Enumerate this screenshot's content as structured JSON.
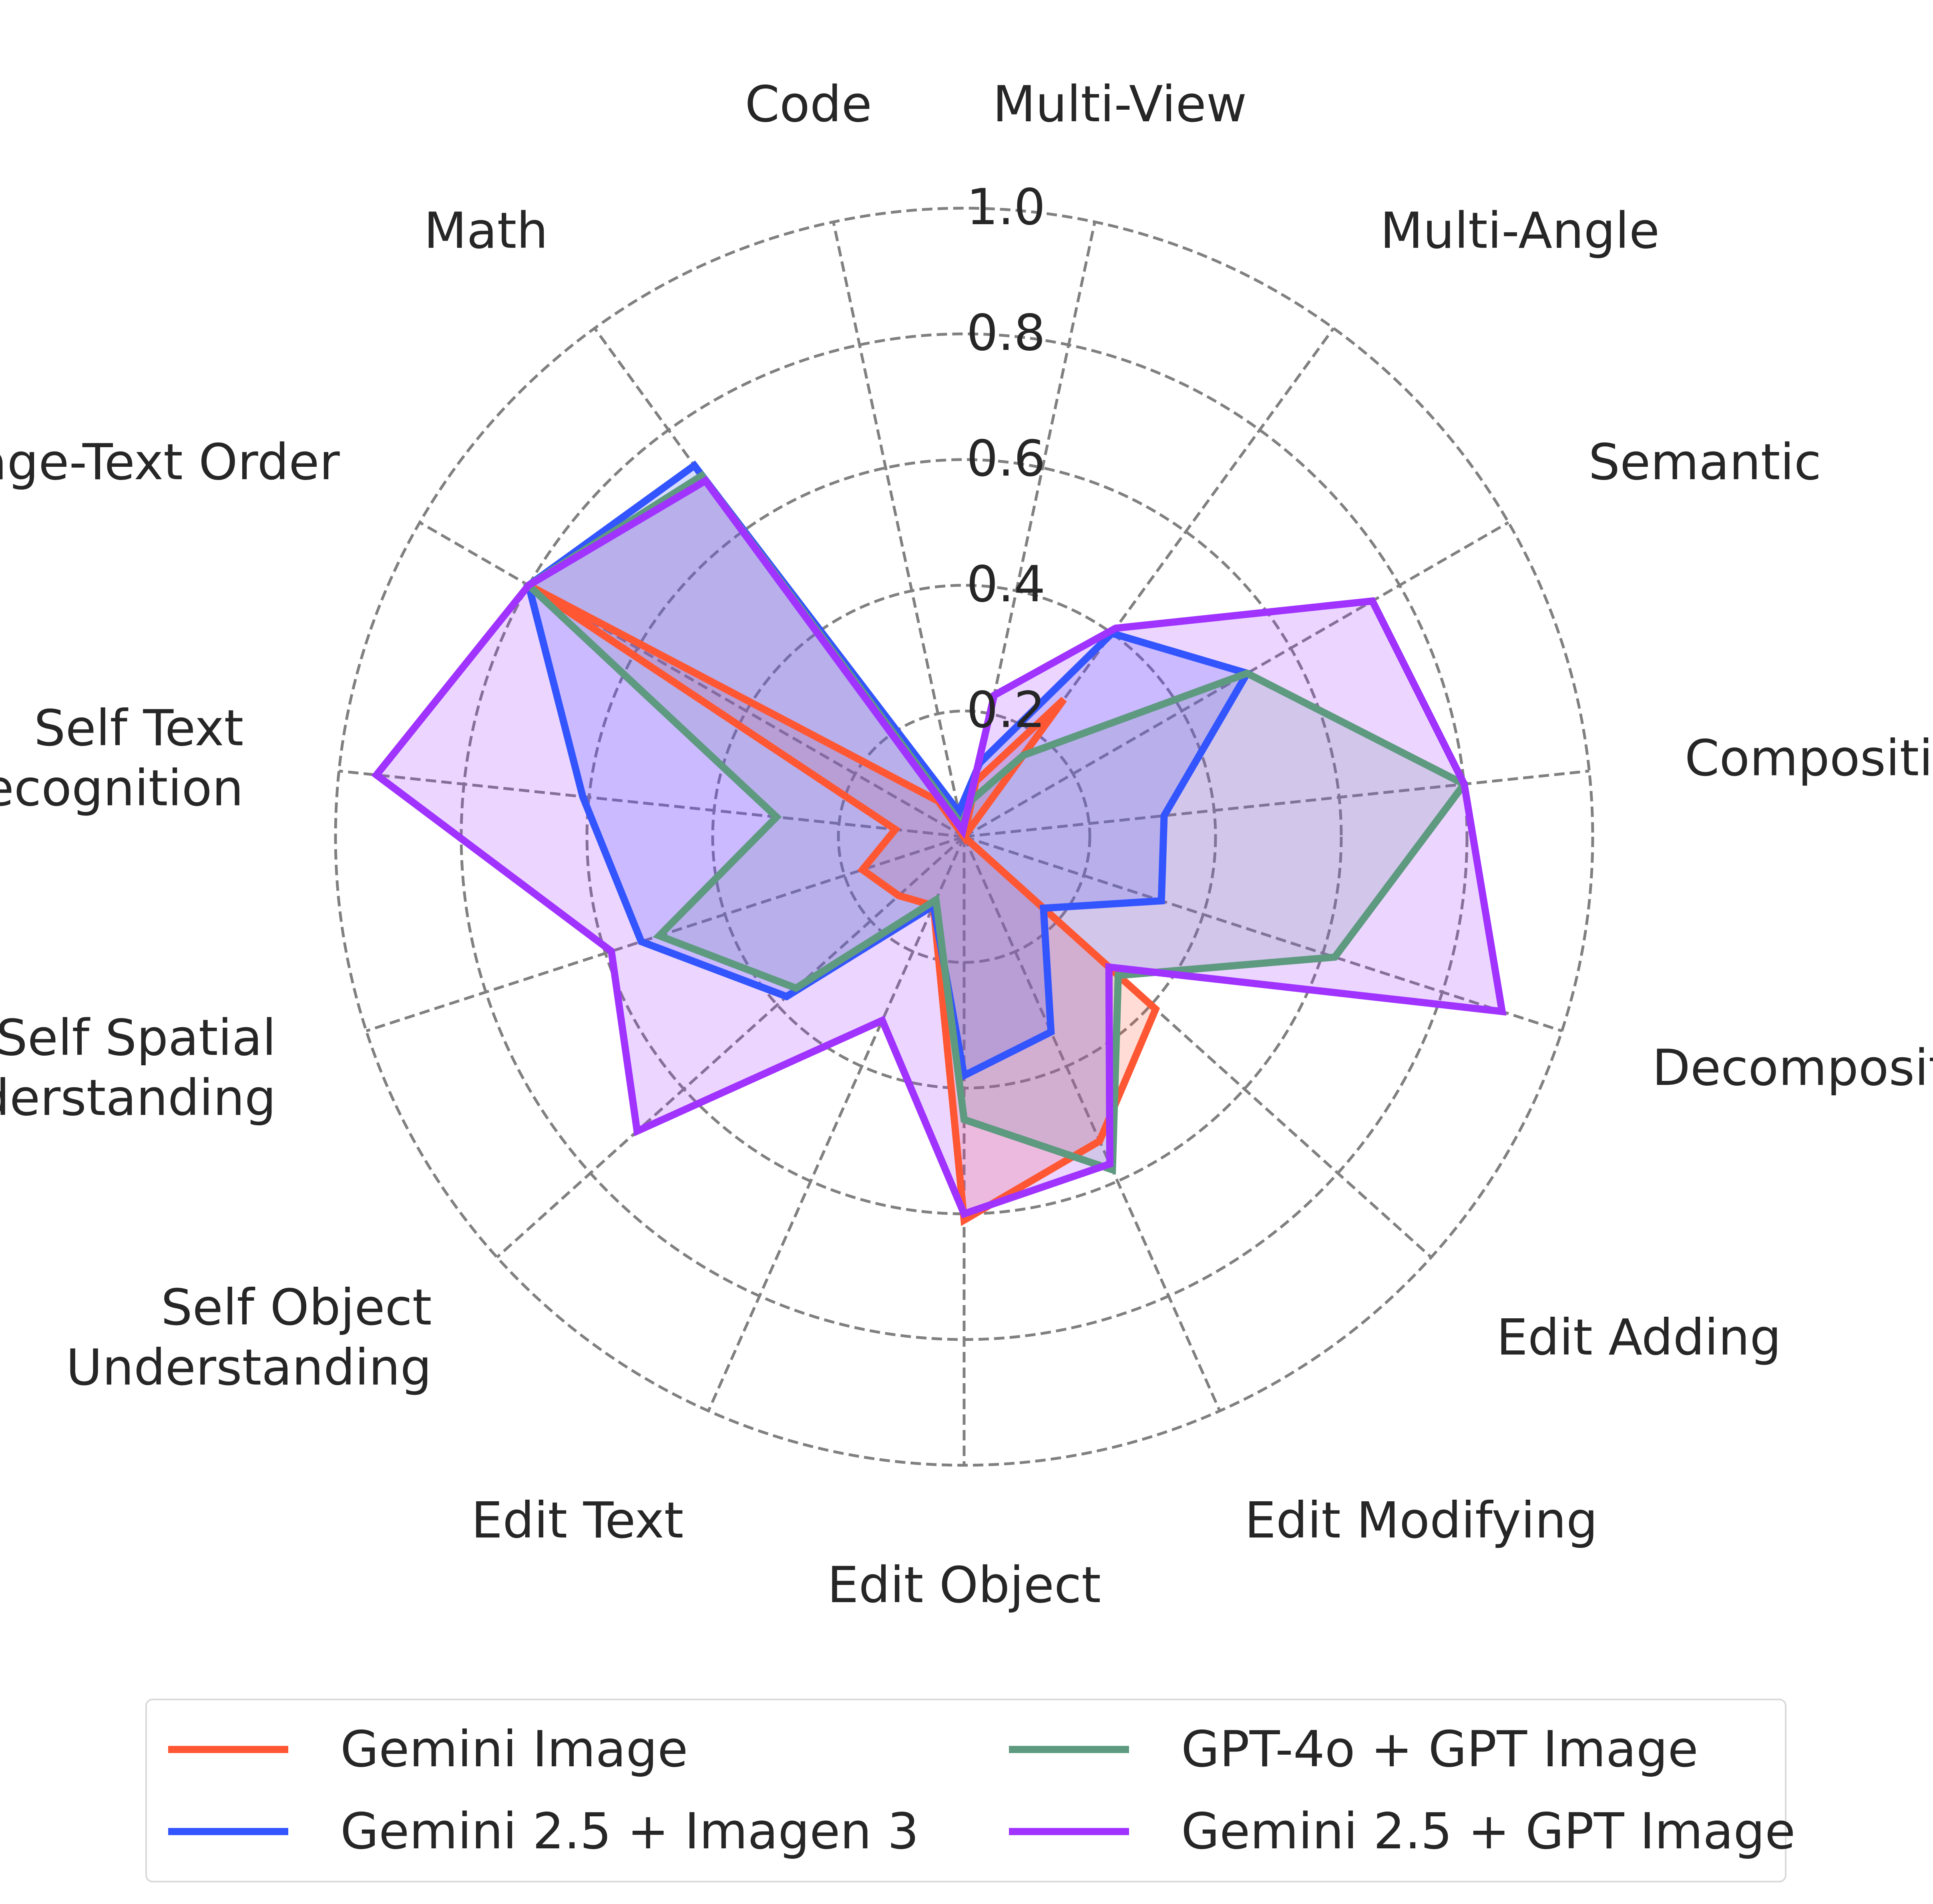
{
  "chart_data": {
    "type": "radar",
    "categories": [
      "Multi-View",
      "Multi-Angle",
      "Semantic",
      "Composition",
      "Decomposition",
      "Edit Adding",
      "Edit Modifying",
      "Edit Object",
      "Edit Text",
      "Self Object\nUnderstanding",
      "Self Spatial\nUnderstanding",
      "Self Text\nRecognition",
      "Image-Text Order",
      "Math",
      "Code"
    ],
    "rlim": [
      0,
      1.0
    ],
    "rticks": [
      "0.2",
      "0.4",
      "0.6",
      "0.8",
      "1.0"
    ],
    "grid": true,
    "legend_position": "bottom",
    "series": [
      {
        "name": "Gemini Image",
        "color": "#ff5733",
        "values": [
          0.09,
          0.27,
          0.0,
          0.0,
          0.0,
          0.41,
          0.53,
          0.61,
          0.12,
          0.14,
          0.17,
          0.11,
          0.8,
          0.07,
          0.0
        ]
      },
      {
        "name": "Gemini 2.5 + Imagen 3",
        "color": "#3355ff",
        "values": [
          0.12,
          0.4,
          0.52,
          0.32,
          0.33,
          0.17,
          0.34,
          0.38,
          0.12,
          0.38,
          0.54,
          0.61,
          0.8,
          0.73,
          0.04
        ]
      },
      {
        "name": "GPT-4o + GPT Image",
        "color": "#5e9a80",
        "values": [
          0.06,
          0.16,
          0.52,
          0.8,
          0.62,
          0.33,
          0.58,
          0.45,
          0.11,
          0.36,
          0.51,
          0.3,
          0.8,
          0.71,
          0.02
        ]
      },
      {
        "name": "Gemini 2.5 + GPT Image",
        "color": "#a033ff",
        "values": [
          0.23,
          0.41,
          0.75,
          0.8,
          0.9,
          0.31,
          0.57,
          0.6,
          0.32,
          0.7,
          0.59,
          0.94,
          0.8,
          0.7,
          0.01
        ]
      }
    ]
  }
}
